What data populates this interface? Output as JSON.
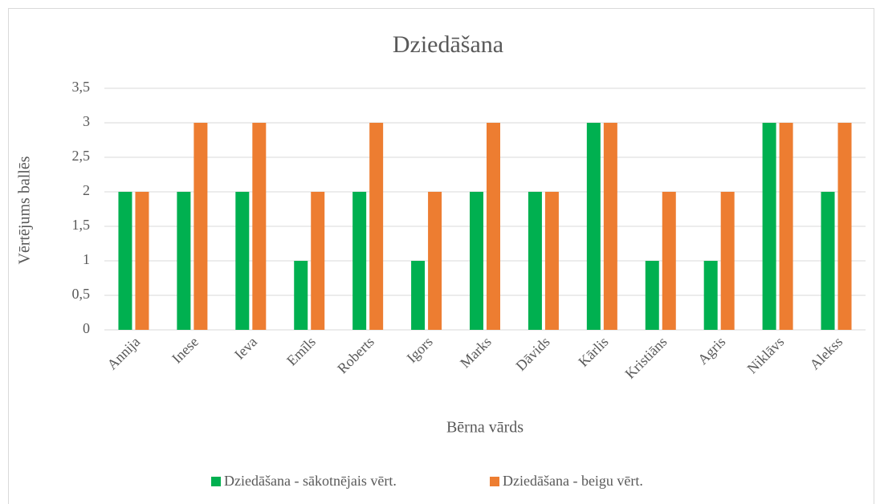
{
  "chart_data": {
    "type": "bar",
    "title": "Dziedāšana",
    "x_label": "Bērna vārds",
    "y_label": "Vērtējums ballēs",
    "categories": [
      "Annija",
      "Inese",
      "Ieva",
      "Emīls",
      "Roberts",
      "Igors",
      "Marks",
      "Dāvids",
      "Kārlis",
      "Kristiāns",
      "Agris",
      "Niklāvs",
      "Alekss"
    ],
    "series": [
      {
        "name": "Dziedāšana - sākotnējais vērt.",
        "color": "#00b050",
        "values": [
          2,
          2,
          2,
          1,
          2,
          1,
          2,
          2,
          3,
          1,
          1,
          3,
          2
        ]
      },
      {
        "name": "Dziedāšana - beigu vērt.",
        "color": "#ed7d31",
        "values": [
          2,
          3,
          3,
          2,
          3,
          2,
          3,
          2,
          3,
          2,
          2,
          3,
          3
        ]
      }
    ],
    "ylim": [
      0,
      3.5
    ],
    "yticks": [
      0,
      {
        "value": 0.5,
        "label": "0,5"
      },
      1,
      {
        "value": 1.5,
        "label": "1,5"
      },
      2,
      {
        "value": 2.5,
        "label": "2,5"
      },
      3,
      {
        "value": 3.5,
        "label": "3,5"
      }
    ],
    "grid": true,
    "legend": "bottom"
  }
}
